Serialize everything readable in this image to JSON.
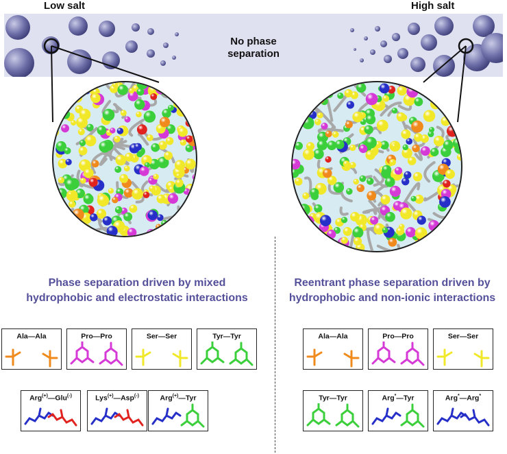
{
  "labels": {
    "low_salt": "Low salt",
    "high_salt": "High salt",
    "no_phase_line1": "No phase",
    "no_phase_line2": "separation"
  },
  "headings": {
    "left_line1": "Phase separation driven by mixed",
    "left_line2": "hydrophobic and electrostatic interactions",
    "right_line1": "Reentrant phase separation driven by",
    "right_line2": "hydrophobic and non-ionic interactions"
  },
  "left_pairs": [
    {
      "a": "Ala",
      "a_sup": "",
      "b": "Ala",
      "b_sup": "",
      "colors": [
        "#f08a1c",
        "#f08a1c"
      ]
    },
    {
      "a": "Pro",
      "a_sup": "",
      "b": "Pro",
      "b_sup": "",
      "colors": [
        "#d63ad6",
        "#d63ad6"
      ]
    },
    {
      "a": "Ser",
      "a_sup": "",
      "b": "Ser",
      "b_sup": "",
      "colors": [
        "#f2e82a",
        "#f2e82a"
      ]
    },
    {
      "a": "Tyr",
      "a_sup": "",
      "b": "Tyr",
      "b_sup": "",
      "colors": [
        "#3ccf3c",
        "#3ccf3c"
      ]
    },
    {
      "a": "Arg",
      "a_sup": "(+)",
      "b": "Glu",
      "b_sup": "(-)",
      "colors": [
        "#2630c8",
        "#e0231e"
      ]
    },
    {
      "a": "Lys",
      "a_sup": "(+)",
      "b": "Asp",
      "b_sup": "(-)",
      "colors": [
        "#2630c8",
        "#e0231e"
      ]
    },
    {
      "a": "Arg",
      "a_sup": "(+)",
      "b": "Tyr",
      "b_sup": "",
      "colors": [
        "#2630c8",
        "#3ccf3c"
      ]
    }
  ],
  "right_pairs": [
    {
      "a": "Ala",
      "a_sup": "",
      "b": "Ala",
      "b_sup": "",
      "colors": [
        "#f08a1c",
        "#f08a1c"
      ]
    },
    {
      "a": "Pro",
      "a_sup": "",
      "b": "Pro",
      "b_sup": "",
      "colors": [
        "#d63ad6",
        "#d63ad6"
      ]
    },
    {
      "a": "Ser",
      "a_sup": "",
      "b": "Ser",
      "b_sup": "",
      "colors": [
        "#f2e82a",
        "#f2e82a"
      ]
    },
    {
      "a": "Tyr",
      "a_sup": "",
      "b": "Tyr",
      "b_sup": "",
      "colors": [
        "#3ccf3c",
        "#3ccf3c"
      ]
    },
    {
      "a": "Arg",
      "a_sup": "*",
      "b": "Tyr",
      "b_sup": "",
      "colors": [
        "#2630c8",
        "#3ccf3c"
      ]
    },
    {
      "a": "Arg",
      "a_sup": "*",
      "b": "Arg",
      "b_sup": "*",
      "colors": [
        "#2630c8",
        "#2630c8"
      ]
    }
  ],
  "colors": {
    "band": "#dfe0f0",
    "droplet": "#6d6ea8",
    "heading": "#55509a",
    "bead_yellow": "#f2e82a",
    "bead_green": "#3ccf3c",
    "bead_magenta": "#d63ad6",
    "bead_red": "#e0231e",
    "bead_blue": "#2630c8",
    "bead_orange": "#f08a1c",
    "chain_gray": "#a8a8a8"
  }
}
